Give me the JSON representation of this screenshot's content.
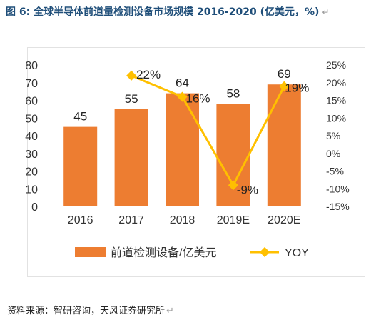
{
  "figure": {
    "title": "图 6: 全球半导体前道量检测设备市场规模 2016-2020 (亿美元，%)",
    "para_mark": "↵",
    "source": "资料来源：智研咨询，天风证券研究所",
    "source_mark": "↵"
  },
  "colors": {
    "bar": "#ed7d31",
    "line": "#ffc000",
    "axis_text": "#333333"
  },
  "chart_data": {
    "type": "bar",
    "categories": [
      "2016",
      "2017",
      "2018",
      "2019E",
      "2020E"
    ],
    "series": [
      {
        "name": "前道检测设备/亿美元",
        "type": "bar",
        "axis": "left",
        "values": [
          45,
          55,
          64,
          58,
          69
        ],
        "labels": [
          "45",
          "55",
          "64",
          "58",
          "69"
        ]
      },
      {
        "name": "YOY",
        "type": "line",
        "axis": "right",
        "values": [
          null,
          22,
          16,
          -9,
          19
        ],
        "labels": [
          null,
          "22%",
          "16%",
          "-9%",
          "19%"
        ]
      }
    ],
    "y_left": {
      "min": 0,
      "max": 80,
      "ticks": [
        "0",
        "10",
        "20",
        "30",
        "40",
        "50",
        "60",
        "70",
        "80"
      ]
    },
    "y_right": {
      "min": -15,
      "max": 25,
      "ticks": [
        "-15%",
        "-10%",
        "-5%",
        "0%",
        "5%",
        "10%",
        "15%",
        "20%",
        "25%"
      ]
    },
    "grid": false,
    "legend": "bottom"
  }
}
